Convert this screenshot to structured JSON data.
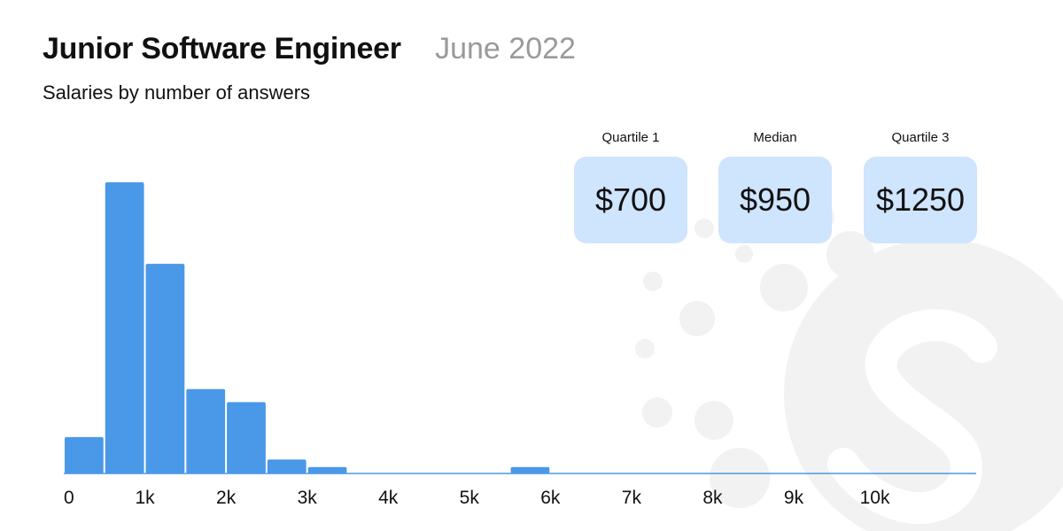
{
  "header": {
    "title": "Junior Software Engineer",
    "date": "June 2022",
    "subtitle": "Salaries by number of answers"
  },
  "stats": [
    {
      "label": "Quartile 1",
      "value": "$700"
    },
    {
      "label": "Median",
      "value": "$950"
    },
    {
      "label": "Quartile 3",
      "value": "$1250"
    }
  ],
  "colors": {
    "bar": "#4a98e8",
    "axis": "#4a98e8",
    "card": "#cfe4fd",
    "date": "#9a9a9a",
    "logo": "#f2f2f2"
  },
  "icons": {
    "background": "logo-watermark-icon"
  },
  "chart_data": {
    "type": "bar",
    "title": "",
    "xlabel": "",
    "ylabel": "",
    "bin_width": 500,
    "xlim": [
      0,
      11250
    ],
    "ylim": [
      0,
      100
    ],
    "bins": [
      {
        "start": 0,
        "value": 12.5
      },
      {
        "start": 500,
        "value": 100
      },
      {
        "start": 1000,
        "value": 72
      },
      {
        "start": 1500,
        "value": 29
      },
      {
        "start": 2000,
        "value": 24.5
      },
      {
        "start": 2500,
        "value": 4.8
      },
      {
        "start": 3000,
        "value": 2.2
      },
      {
        "start": 5500,
        "value": 2.2
      }
    ],
    "x_ticks": [
      {
        "value": 0,
        "label": "0"
      },
      {
        "value": 1000,
        "label": "1k"
      },
      {
        "value": 2000,
        "label": "2k"
      },
      {
        "value": 3000,
        "label": "3k"
      },
      {
        "value": 4000,
        "label": "4k"
      },
      {
        "value": 5000,
        "label": "5k"
      },
      {
        "value": 6000,
        "label": "6k"
      },
      {
        "value": 7000,
        "label": "7k"
      },
      {
        "value": 8000,
        "label": "8k"
      },
      {
        "value": 9000,
        "label": "9k"
      },
      {
        "value": 10000,
        "label": "10k"
      }
    ],
    "grid": false
  }
}
